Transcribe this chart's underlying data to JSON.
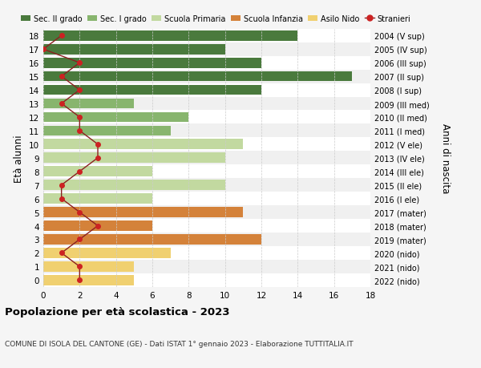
{
  "ages": [
    18,
    17,
    16,
    15,
    14,
    13,
    12,
    11,
    10,
    9,
    8,
    7,
    6,
    5,
    4,
    3,
    2,
    1,
    0
  ],
  "years": [
    "2004 (V sup)",
    "2005 (IV sup)",
    "2006 (III sup)",
    "2007 (II sup)",
    "2008 (I sup)",
    "2009 (III med)",
    "2010 (II med)",
    "2011 (I med)",
    "2012 (V ele)",
    "2013 (IV ele)",
    "2014 (III ele)",
    "2015 (II ele)",
    "2016 (I ele)",
    "2017 (mater)",
    "2018 (mater)",
    "2019 (mater)",
    "2020 (nido)",
    "2021 (nido)",
    "2022 (nido)"
  ],
  "bar_values": [
    14,
    10,
    12,
    17,
    12,
    5,
    8,
    7,
    11,
    10,
    6,
    10,
    6,
    11,
    6,
    12,
    7,
    5,
    5
  ],
  "bar_colors": [
    "#4a7a3d",
    "#4a7a3d",
    "#4a7a3d",
    "#4a7a3d",
    "#4a7a3d",
    "#88b56e",
    "#88b56e",
    "#88b56e",
    "#c2d9a0",
    "#c2d9a0",
    "#c2d9a0",
    "#c2d9a0",
    "#c2d9a0",
    "#d4823a",
    "#d4823a",
    "#d4823a",
    "#f0d070",
    "#f0d070",
    "#f0d070"
  ],
  "stranieri_values": [
    1,
    0,
    2,
    1,
    2,
    1,
    2,
    2,
    3,
    3,
    2,
    1,
    1,
    2,
    3,
    2,
    1,
    2,
    2
  ],
  "stranieri_line_color": "#8b2020",
  "stranieri_marker_color": "#cc2222",
  "legend_labels": [
    "Sec. II grado",
    "Sec. I grado",
    "Scuola Primaria",
    "Scuola Infanzia",
    "Asilo Nido",
    "Stranieri"
  ],
  "legend_colors": [
    "#4a7a3d",
    "#88b56e",
    "#c2d9a0",
    "#d4823a",
    "#f0d070",
    "#cc2222"
  ],
  "title": "Popolazione per età scolastica - 2023",
  "subtitle": "COMUNE DI ISOLA DEL CANTONE (GE) - Dati ISTAT 1° gennaio 2023 - Elaborazione TUTTITALIA.IT",
  "ylabel": "Età alunni",
  "right_ylabel": "Anni di nascita",
  "xlim": [
    0,
    18
  ],
  "background_color": "#f5f5f5",
  "bar_background_even": "#ffffff",
  "bar_background_odd": "#f0f0f0",
  "grid_color": "#cccccc"
}
